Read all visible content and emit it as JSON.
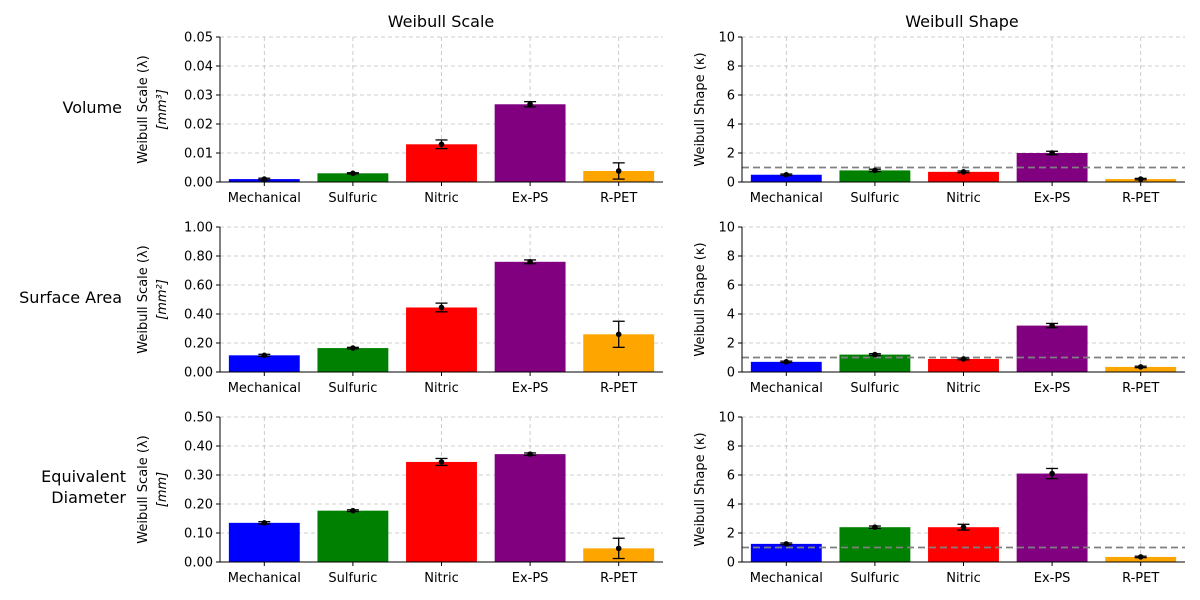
{
  "col_titles": [
    "Weibull Scale",
    "Weibull Shape"
  ],
  "row_labels": [
    "Volume",
    "Surface Area",
    "Equivalent\nDiameter"
  ],
  "colors": {
    "Mechanical": "#0000ff",
    "Sulfuric": "#008000",
    "Nitric": "#ff0000",
    "Ex-PS": "#800080",
    "R-PET": "#ffa500",
    "reference_line": "#808080",
    "grid": "#c0c0c0"
  },
  "chart_data": [
    {
      "type": "bar",
      "row": "Volume",
      "col": "Weibull Scale",
      "categories": [
        "Mechanical",
        "Sulfuric",
        "Nitric",
        "Ex-PS",
        "R-PET"
      ],
      "values": [
        0.001,
        0.003,
        0.013,
        0.0268,
        0.0038
      ],
      "errors": [
        0.0003,
        0.0002,
        0.0015,
        0.0009,
        0.0028
      ],
      "ylabel": "Weibull Scale (λ)",
      "ylabel_unit": "[mm³]",
      "ylim": [
        0,
        0.05
      ],
      "yticks": [
        "0.00",
        "0.01",
        "0.02",
        "0.03",
        "0.04",
        "0.05"
      ],
      "grid": true
    },
    {
      "type": "bar",
      "row": "Volume",
      "col": "Weibull Shape",
      "categories": [
        "Mechanical",
        "Sulfuric",
        "Nitric",
        "Ex-PS",
        "R-PET"
      ],
      "values": [
        0.5,
        0.8,
        0.7,
        2.0,
        0.2
      ],
      "errors": [
        0.05,
        0.08,
        0.06,
        0.12,
        0.05
      ],
      "ylabel": "Weibull Shape (κ)",
      "ylabel_unit": "",
      "ylim": [
        0,
        10
      ],
      "yticks": [
        "0",
        "2",
        "4",
        "6",
        "8",
        "10"
      ],
      "reference_line": 1,
      "grid": true
    },
    {
      "type": "bar",
      "row": "Surface Area",
      "col": "Weibull Scale",
      "categories": [
        "Mechanical",
        "Sulfuric",
        "Nitric",
        "Ex-PS",
        "R-PET"
      ],
      "values": [
        0.115,
        0.165,
        0.445,
        0.76,
        0.26
      ],
      "errors": [
        0.007,
        0.005,
        0.03,
        0.013,
        0.09
      ],
      "ylabel": "Weibull Scale (λ)",
      "ylabel_unit": "[mm²]",
      "ylim": [
        0,
        1.0
      ],
      "yticks": [
        "0.00",
        "0.20",
        "0.40",
        "0.60",
        "0.80",
        "1.00"
      ],
      "grid": true
    },
    {
      "type": "bar",
      "row": "Surface Area",
      "col": "Weibull Shape",
      "categories": [
        "Mechanical",
        "Sulfuric",
        "Nitric",
        "Ex-PS",
        "R-PET"
      ],
      "values": [
        0.7,
        1.2,
        0.9,
        3.2,
        0.35
      ],
      "errors": [
        0.05,
        0.06,
        0.06,
        0.15,
        0.05
      ],
      "ylabel": "Weibull Shape (κ)",
      "ylabel_unit": "",
      "ylim": [
        0,
        10
      ],
      "yticks": [
        "0",
        "2",
        "4",
        "6",
        "8",
        "10"
      ],
      "reference_line": 1,
      "grid": true
    },
    {
      "type": "bar",
      "row": "Equivalent Diameter",
      "col": "Weibull Scale",
      "categories": [
        "Mechanical",
        "Sulfuric",
        "Nitric",
        "Ex-PS",
        "R-PET"
      ],
      "values": [
        0.135,
        0.177,
        0.345,
        0.372,
        0.047
      ],
      "errors": [
        0.004,
        0.003,
        0.012,
        0.004,
        0.035
      ],
      "ylabel": "Weibull Scale (λ)",
      "ylabel_unit": "[mm]",
      "ylim": [
        0,
        0.5
      ],
      "yticks": [
        "0.00",
        "0.10",
        "0.20",
        "0.30",
        "0.40",
        "0.50"
      ],
      "grid": true
    },
    {
      "type": "bar",
      "row": "Equivalent Diameter",
      "col": "Weibull Shape",
      "categories": [
        "Mechanical",
        "Sulfuric",
        "Nitric",
        "Ex-PS",
        "R-PET"
      ],
      "values": [
        1.25,
        2.4,
        2.4,
        6.1,
        0.35
      ],
      "errors": [
        0.06,
        0.08,
        0.2,
        0.35,
        0.05
      ],
      "ylabel": "Weibull Shape (κ)",
      "ylabel_unit": "",
      "ylim": [
        0,
        10
      ],
      "yticks": [
        "0",
        "2",
        "4",
        "6",
        "8",
        "10"
      ],
      "reference_line": 1,
      "grid": true
    }
  ]
}
